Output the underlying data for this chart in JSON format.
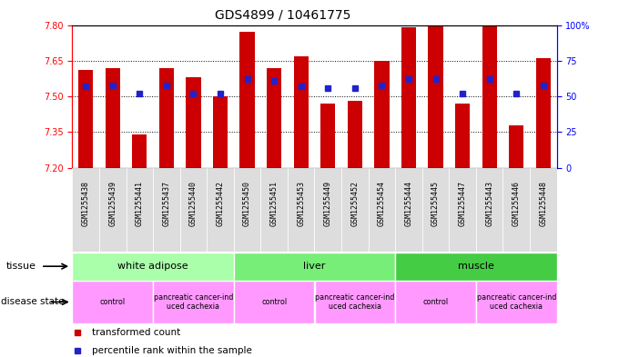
{
  "title": "GDS4899 / 10461775",
  "samples": [
    "GSM1255438",
    "GSM1255439",
    "GSM1255441",
    "GSM1255437",
    "GSM1255440",
    "GSM1255442",
    "GSM1255450",
    "GSM1255451",
    "GSM1255453",
    "GSM1255449",
    "GSM1255452",
    "GSM1255454",
    "GSM1255444",
    "GSM1255445",
    "GSM1255447",
    "GSM1255443",
    "GSM1255446",
    "GSM1255448"
  ],
  "transformed_count": [
    7.61,
    7.62,
    7.34,
    7.62,
    7.58,
    7.5,
    7.77,
    7.62,
    7.67,
    7.47,
    7.48,
    7.65,
    7.79,
    7.8,
    7.47,
    7.8,
    7.38,
    7.66
  ],
  "percentile_rank": [
    57,
    58,
    52,
    58,
    52,
    52,
    62,
    61,
    57,
    56,
    56,
    58,
    62,
    62,
    52,
    62,
    52,
    58
  ],
  "ylim_left": [
    7.2,
    7.8
  ],
  "ylim_right": [
    0,
    100
  ],
  "yticks_left": [
    7.2,
    7.35,
    7.5,
    7.65,
    7.8
  ],
  "yticks_right": [
    0,
    25,
    50,
    75,
    100
  ],
  "bar_color": "#cc0000",
  "dot_color": "#2222cc",
  "bar_bottom": 7.2,
  "tissue_groups": [
    {
      "label": "white adipose",
      "start": 0,
      "end": 6,
      "color": "#aaffaa"
    },
    {
      "label": "liver",
      "start": 6,
      "end": 12,
      "color": "#77ee77"
    },
    {
      "label": "muscle",
      "start": 12,
      "end": 18,
      "color": "#44cc44"
    }
  ],
  "disease_groups": [
    {
      "label": "control",
      "start": 0,
      "end": 3
    },
    {
      "label": "pancreatic cancer-ind\nuced cachexia",
      "start": 3,
      "end": 6
    },
    {
      "label": "control",
      "start": 6,
      "end": 9
    },
    {
      "label": "pancreatic cancer-ind\nuced cachexia",
      "start": 9,
      "end": 12
    },
    {
      "label": "control",
      "start": 12,
      "end": 15
    },
    {
      "label": "pancreatic cancer-ind\nuced cachexia",
      "start": 15,
      "end": 18
    }
  ],
  "disease_color": "#ff99ff",
  "sample_bg_color": "#dddddd",
  "grid_linestyle": ":",
  "grid_color": "black",
  "title_fontsize": 10,
  "tick_fontsize": 7,
  "sample_fontsize": 6
}
